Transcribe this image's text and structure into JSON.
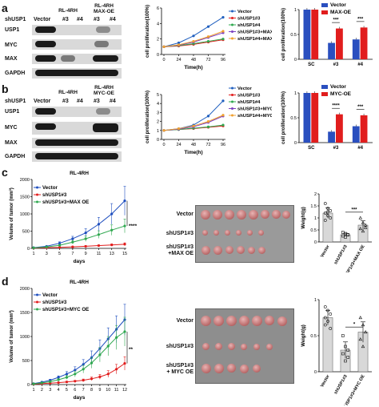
{
  "panel_labels": {
    "a": "a",
    "b": "b",
    "c": "c",
    "d": "d"
  },
  "colors": {
    "vector": "#1f5fbf",
    "sh3": "#e11d1d",
    "sh4": "#2fa84f",
    "sh3_add": "#7a3fbf",
    "sh4_add": "#f0a030",
    "bar_blue": "#2a4fbf",
    "bar_red": "#e11d1d",
    "c_vector": "#1f4fbf",
    "c_sh": "#e11d1d",
    "c_oe": "#2fa84f"
  },
  "blot_a": {
    "cell_line": "RL-4RH",
    "oe_header": "RL-4RH\nMAX-OE",
    "lanes_title": "shUSP1",
    "lanes": [
      "Vector",
      "#3",
      "#4",
      "#3",
      "#4"
    ],
    "rows": [
      "USP1",
      "MYC",
      "MAX",
      "GAPDH"
    ]
  },
  "blot_b": {
    "cell_line": "RL-4RH",
    "oe_header": "RL-4RH\nMYC-OE",
    "lanes_title": "shUSP1",
    "lanes": [
      "Vector",
      "#3",
      "#4",
      "#3",
      "#4"
    ],
    "rows": [
      "USP1",
      "MYC",
      "MAX",
      "GAPDH"
    ]
  },
  "chart_data": [
    {
      "id": "a-line",
      "type": "line",
      "xlabel": "Time(h)",
      "ylabel": "cell proliferation(100%)",
      "x": [
        0,
        24,
        48,
        72,
        96
      ],
      "ylim": [
        0,
        6
      ],
      "yticks": [
        0,
        2,
        4,
        6
      ],
      "series": [
        {
          "name": "Vector",
          "values": [
            1.0,
            1.5,
            2.4,
            3.6,
            4.8
          ],
          "color": "#1f5fbf"
        },
        {
          "name": "shUSP1#3",
          "values": [
            1.0,
            1.1,
            1.3,
            1.6,
            1.9
          ],
          "color": "#e11d1d"
        },
        {
          "name": "shUSP1#4",
          "values": [
            1.0,
            1.15,
            1.4,
            1.7,
            2.0
          ],
          "color": "#2fa84f"
        },
        {
          "name": "shUSP1#3+MAX",
          "values": [
            1.0,
            1.2,
            1.6,
            2.2,
            2.8
          ],
          "color": "#7a3fbf"
        },
        {
          "name": "shUSP1#4+MAX",
          "values": [
            1.0,
            1.25,
            1.7,
            2.3,
            3.0
          ],
          "color": "#f0a030"
        }
      ]
    },
    {
      "id": "a-bar",
      "type": "bar",
      "ylabel": "cell proliferation(100%)",
      "categories": [
        "SC",
        "#3",
        "#4"
      ],
      "ylim": [
        0,
        1.0
      ],
      "yticks": [
        0.0,
        0.5,
        1.0
      ],
      "series": [
        {
          "name": "Vector",
          "values": [
            1.0,
            0.33,
            0.4
          ],
          "color": "#2a4fbf"
        },
        {
          "name": "MAX-OE",
          "values": [
            1.0,
            0.62,
            0.64
          ],
          "color": "#e11d1d"
        }
      ],
      "annotations": [
        "***",
        "***"
      ]
    },
    {
      "id": "b-line",
      "type": "line",
      "xlabel": "Time(h)",
      "ylabel": "cell proliferation(100%)",
      "x": [
        0,
        24,
        48,
        72,
        96
      ],
      "ylim": [
        0,
        5
      ],
      "yticks": [
        0,
        1,
        2,
        3,
        4,
        5
      ],
      "series": [
        {
          "name": "Vector",
          "values": [
            1.0,
            1.2,
            1.6,
            2.6,
            4.3
          ],
          "color": "#1f5fbf"
        },
        {
          "name": "shUSP1#3",
          "values": [
            1.0,
            1.1,
            1.2,
            1.35,
            1.5
          ],
          "color": "#e11d1d"
        },
        {
          "name": "shUSP1#4",
          "values": [
            1.0,
            1.1,
            1.25,
            1.4,
            1.6
          ],
          "color": "#2fa84f"
        },
        {
          "name": "shUSP1#3+MYC",
          "values": [
            1.0,
            1.15,
            1.4,
            1.9,
            2.6
          ],
          "color": "#7a3fbf"
        },
        {
          "name": "shUSP1#4+MYC",
          "values": [
            1.0,
            1.2,
            1.5,
            2.0,
            2.7
          ],
          "color": "#f0a030"
        }
      ]
    },
    {
      "id": "b-bar",
      "type": "bar",
      "ylabel": "cell proliferation(100%)",
      "categories": [
        "SC",
        "#3",
        "#4"
      ],
      "ylim": [
        0,
        1.0
      ],
      "yticks": [
        0.0,
        0.5,
        1.0
      ],
      "series": [
        {
          "name": "Vector",
          "values": [
            1.0,
            0.22,
            0.33
          ],
          "color": "#2a4fbf"
        },
        {
          "name": "MYC-OE",
          "values": [
            1.0,
            0.57,
            0.55
          ],
          "color": "#e11d1d"
        }
      ],
      "annotations": [
        "****",
        "***"
      ]
    },
    {
      "id": "c-line",
      "type": "line",
      "title": "RL-4RH",
      "xlabel": "days",
      "ylabel": "Volume of tumor (mm³)",
      "x": [
        1,
        3,
        5,
        7,
        9,
        11,
        13,
        15
      ],
      "ylim": [
        0,
        2000
      ],
      "yticks": [
        0,
        500,
        1000,
        1500,
        2000
      ],
      "series": [
        {
          "name": "Vector",
          "values": [
            20,
            60,
            150,
            280,
            450,
            700,
            1000,
            1380
          ],
          "err": [
            5,
            15,
            40,
            70,
            120,
            200,
            300,
            420
          ],
          "color": "#1f4fbf"
        },
        {
          "name": "shUSP1#3",
          "values": [
            10,
            20,
            30,
            45,
            60,
            80,
            100,
            120
          ],
          "err": [
            3,
            5,
            8,
            12,
            18,
            22,
            30,
            40
          ],
          "color": "#e11d1d"
        },
        {
          "name": "shUSP1#3+MAX OE",
          "values": [
            15,
            40,
            90,
            180,
            280,
            400,
            530,
            650
          ],
          "err": [
            4,
            10,
            25,
            50,
            80,
            110,
            150,
            200
          ],
          "color": "#2fa84f"
        }
      ],
      "annotations": [
        "****"
      ]
    },
    {
      "id": "c-dot",
      "type": "bar",
      "ylabel": "Weight(g)",
      "categories": [
        "Vector",
        "shUSP1#3",
        "shUSP1#3+MAX OE"
      ],
      "ylim": [
        0,
        2.0
      ],
      "yticks": [
        0.0,
        0.5,
        1.0,
        1.5,
        2.0
      ],
      "values": [
        1.2,
        0.3,
        0.7
      ],
      "points": [
        [
          1.6,
          1.4,
          1.3,
          1.2,
          1.1,
          1.0,
          0.9,
          1.25
        ],
        [
          0.4,
          0.35,
          0.3,
          0.25,
          0.2,
          0.3
        ],
        [
          1.0,
          0.8,
          0.7,
          0.55,
          0.45,
          0.6
        ]
      ],
      "annotations": [
        "***"
      ]
    },
    {
      "id": "d-line",
      "type": "line",
      "title": "RL-4RH",
      "xlabel": "days",
      "ylabel": "Volume of tumor (mm³)",
      "x": [
        1,
        2,
        3,
        4,
        5,
        6,
        7,
        8,
        9,
        10,
        11,
        12
      ],
      "ylim": [
        0,
        2000
      ],
      "yticks": [
        0,
        500,
        1000,
        1500,
        2000
      ],
      "series": [
        {
          "name": "Vector",
          "values": [
            20,
            50,
            90,
            150,
            220,
            300,
            420,
            560,
            750,
            950,
            1150,
            1350
          ],
          "err": [
            5,
            10,
            20,
            30,
            50,
            70,
            100,
            140,
            180,
            230,
            280,
            320
          ],
          "color": "#1f4fbf"
        },
        {
          "name": "shUSP1#3",
          "values": [
            10,
            20,
            30,
            40,
            55,
            70,
            90,
            120,
            160,
            220,
            320,
            440
          ],
          "err": [
            3,
            5,
            8,
            10,
            14,
            18,
            25,
            35,
            50,
            70,
            100,
            140
          ],
          "color": "#e11d1d"
        },
        {
          "name": "shUSP1#3+MYC OE",
          "values": [
            15,
            35,
            60,
            100,
            150,
            220,
            320,
            450,
            620,
            800,
            980,
            1100
          ],
          "err": [
            4,
            8,
            15,
            25,
            40,
            60,
            80,
            110,
            150,
            200,
            250,
            300
          ],
          "color": "#2fa84f"
        }
      ],
      "annotations": [
        "**"
      ]
    },
    {
      "id": "d-dot",
      "type": "bar",
      "ylabel": "Weight(g)",
      "categories": [
        "Vector",
        "shUSP1#3",
        "shUSP1#3+MYC OE"
      ],
      "ylim": [
        0,
        1.0
      ],
      "yticks": [
        0.0,
        0.5,
        1.0
      ],
      "values": [
        0.75,
        0.3,
        0.55
      ],
      "points": [
        [
          0.9,
          0.85,
          0.8,
          0.75,
          0.7,
          0.6,
          0.65
        ],
        [
          0.5,
          0.35,
          0.3,
          0.25,
          0.15,
          0.2
        ],
        [
          0.75,
          0.65,
          0.55,
          0.45,
          0.35
        ]
      ],
      "annotations": [
        "*"
      ]
    }
  ],
  "photo_c": {
    "labels": [
      "Vector",
      "shUSP1#3",
      "shUSP1#3\n+MAX OE"
    ]
  },
  "photo_d": {
    "labels": [
      "Vector",
      "shUSP1#3",
      "shUSP1#3\n+ MYC OE"
    ]
  }
}
